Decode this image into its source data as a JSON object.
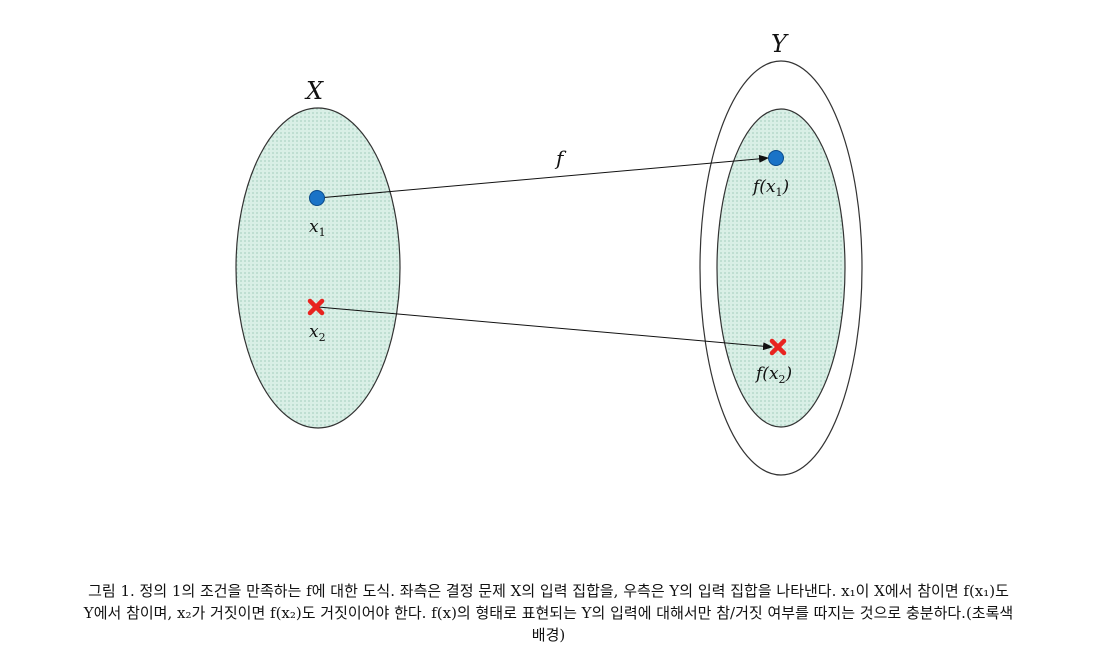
{
  "diagram": {
    "set_x_label": "X",
    "set_y_label": "Y",
    "map_label": "f",
    "x1_label": "x",
    "x1_sub": "1",
    "x2_label": "x",
    "x2_sub": "2",
    "fx1_func": "f(",
    "fx1_var": "x",
    "fx1_sub": "1",
    "fx1_close": ")",
    "fx2_func": "f(",
    "fx2_var": "x",
    "fx2_sub": "2",
    "fx2_close": ")",
    "fill_color": "#d9efe6",
    "dot_color": "#1a73c7",
    "cross_color": "#e8231f"
  },
  "caption": {
    "line1": "그림 1. 정의 1의 조건을 만족하는 f에 대한 도식. 좌측은 결정 문제 X의 입력 집합을, 우측은 Y의 입력 집합을 나타낸다. x₁이 X에서 참이면 f(x₁)도",
    "line2": "Y에서 참이며, x₂가 거짓이면 f(x₂)도 거짓이어야 한다. f(x)의 형태로 표현되는 Y의 입력에 대해서만 참/거짓 여부를 따지는 것으로 충분하다.(초록색",
    "line3": "배경)"
  }
}
